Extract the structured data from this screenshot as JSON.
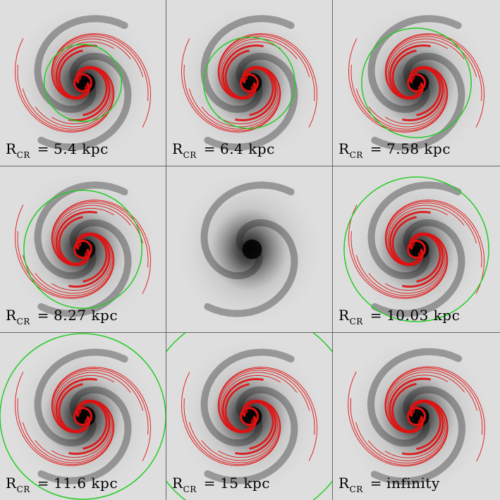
{
  "panels": [
    {
      "symbol": "R",
      "subscript": "CR",
      "eq": "=",
      "value": "5.4 kpc",
      "circle": true,
      "contours": true
    },
    {
      "symbol": "R",
      "subscript": "CR",
      "eq": "=",
      "value": "6.4 kpc",
      "circle": true,
      "contours": true
    },
    {
      "symbol": "R",
      "subscript": "CR",
      "eq": "=",
      "value": "7.58 kpc",
      "circle": true,
      "contours": true
    },
    {
      "symbol": "R",
      "subscript": "CR",
      "eq": "=",
      "value": "8.27 kpc",
      "circle": true,
      "contours": true
    },
    {
      "symbol": "",
      "subscript": "",
      "eq": "",
      "value": "",
      "circle": false,
      "contours": false
    },
    {
      "symbol": "R",
      "subscript": "CR",
      "eq": "=",
      "value": "10.03 kpc",
      "circle": true,
      "contours": true
    },
    {
      "symbol": "R",
      "subscript": "CR",
      "eq": "=",
      "value": "11.6 kpc",
      "circle": true,
      "contours": true
    },
    {
      "symbol": "R",
      "subscript": "CR",
      "eq": "=",
      "value": "15 kpc",
      "circle": true,
      "contours": true
    },
    {
      "symbol": "R",
      "subscript": "CR",
      "eq": "=",
      "value": "infinity",
      "circle": false,
      "contours": true
    }
  ],
  "colors": {
    "contour": "#e01010",
    "circle": "#22cc22",
    "galaxy": "#1a1a1a",
    "background": "#dedede"
  }
}
